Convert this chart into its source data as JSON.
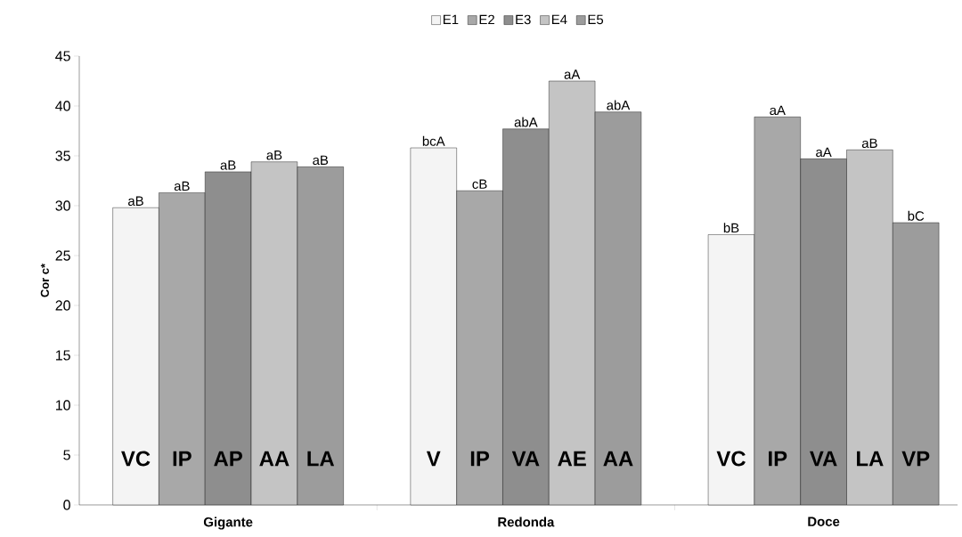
{
  "chart_data": {
    "type": "bar",
    "ylabel": "Cor c*",
    "categories": [
      "Gigante",
      "Redonda",
      "Doce"
    ],
    "series": [
      {
        "name": "E1",
        "color": "#f4f4f4",
        "values": [
          29.8,
          35.8,
          27.1
        ],
        "value_labels": [
          "aB",
          "bcA",
          "bB"
        ]
      },
      {
        "name": "E2",
        "color": "#a8a8a8",
        "values": [
          31.3,
          31.5,
          38.9
        ],
        "value_labels": [
          "aB",
          "cB",
          "aA"
        ]
      },
      {
        "name": "E3",
        "color": "#8e8e8e",
        "values": [
          33.4,
          37.7,
          34.7
        ],
        "value_labels": [
          "aB",
          "abA",
          "aA"
        ]
      },
      {
        "name": "E4",
        "color": "#c4c4c4",
        "values": [
          34.4,
          42.5,
          35.6
        ],
        "value_labels": [
          "aB",
          "aA",
          "aB"
        ]
      },
      {
        "name": "E5",
        "color": "#9c9c9c",
        "values": [
          33.9,
          39.4,
          28.3
        ],
        "value_labels": [
          "aB",
          "abA",
          "bC"
        ]
      }
    ],
    "ylim": [
      0,
      45
    ],
    "yticks": [
      0,
      5,
      10,
      15,
      20,
      25,
      30,
      35,
      40,
      45
    ],
    "grid": false,
    "legend": "top",
    "annotations": [
      "VC",
      "IP",
      "AP",
      "AA",
      "LA",
      "V",
      "IP",
      "VA",
      "AE",
      "AA",
      "VC",
      "IP",
      "VA",
      "LA",
      "VP"
    ]
  }
}
